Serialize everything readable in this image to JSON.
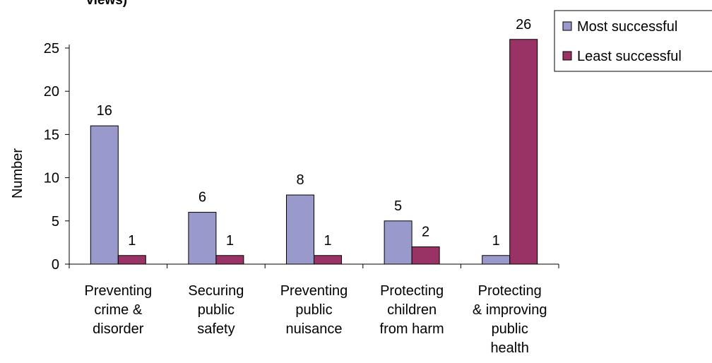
{
  "chart_data": {
    "type": "bar",
    "title": "views)",
    "xlabel": "",
    "ylabel": "Number",
    "ylim": [
      0,
      26
    ],
    "yticks": [
      0,
      5,
      10,
      15,
      20,
      25
    ],
    "grid": false,
    "legend_position": "top-right",
    "categories": [
      [
        "Preventing",
        "crime &",
        "disorder"
      ],
      [
        "Securing",
        "public",
        "safety"
      ],
      [
        "Preventing",
        "public",
        "nuisance"
      ],
      [
        "Protecting",
        "children",
        "from harm"
      ],
      [
        "Protecting",
        "& improving",
        "public",
        "health"
      ]
    ],
    "series": [
      {
        "name": "Most successful",
        "color": "#9999cc",
        "values": [
          16,
          6,
          8,
          5,
          1
        ]
      },
      {
        "name": "Least successful",
        "color": "#993366",
        "values": [
          1,
          1,
          1,
          2,
          26
        ]
      }
    ]
  }
}
